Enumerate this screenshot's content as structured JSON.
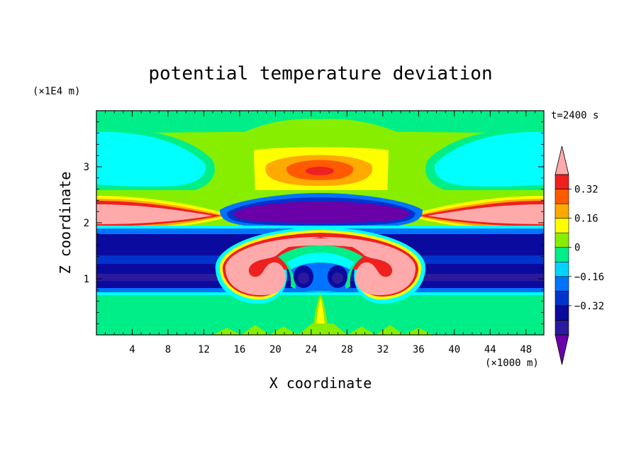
{
  "chart_data": {
    "type": "heatmap",
    "title": "potential temperature deviation",
    "xlabel": "X coordinate",
    "ylabel": "Z coordinate",
    "x_unit": "(×1000 m)",
    "y_unit": "(×1E4 m)",
    "time_label": "t=2400 s",
    "xlim": [
      0,
      50
    ],
    "ylim": [
      0,
      4
    ],
    "x_ticks": [
      "4",
      "8",
      "12",
      "16",
      "20",
      "24",
      "28",
      "32",
      "36",
      "40",
      "44",
      "48"
    ],
    "y_ticks": [
      "1",
      "2",
      "3"
    ],
    "x_tick_values": [
      4,
      8,
      12,
      16,
      20,
      24,
      28,
      32,
      36,
      40,
      44,
      48
    ],
    "y_tick_values": [
      1,
      2,
      3
    ],
    "colorbar": {
      "levels": [
        -0.48,
        -0.4,
        -0.32,
        -0.24,
        -0.16,
        -0.08,
        0,
        0.08,
        0.16,
        0.24,
        0.32,
        0.4
      ],
      "colors": [
        "#6a00a8",
        "#2c1a9e",
        "#0a0a9e",
        "#0033cc",
        "#0073ff",
        "#00d4ff",
        "#00ee88",
        "#88ee00",
        "#ffff00",
        "#ffaa00",
        "#ff5a00",
        "#ee2020",
        "#ffaaaa"
      ],
      "labels": [
        "0.32",
        "0.16",
        "0",
        "−0.16",
        "−0.32"
      ],
      "label_values": [
        0.32,
        0.16,
        0,
        -0.16,
        -0.32
      ]
    },
    "regions": [
      {
        "name": "background",
        "value": 0.04
      },
      {
        "name": "upper-left-cyan-lobe",
        "value": -0.06
      },
      {
        "name": "upper-right-cyan-lobe",
        "value": -0.06
      },
      {
        "name": "top-center-warm-dome",
        "value": 0.3
      },
      {
        "name": "purple-cold-cap",
        "value": -0.45
      },
      {
        "name": "left-pink-warm-wedge",
        "value": 0.45
      },
      {
        "name": "right-pink-warm-wedge",
        "value": 0.45
      },
      {
        "name": "cold-blue-band",
        "value": -0.36
      },
      {
        "name": "left-thermal-rotor",
        "value": 0.45
      },
      {
        "name": "right-thermal-rotor",
        "value": 0.45
      },
      {
        "name": "lower-green-layer",
        "value": 0.0
      }
    ]
  }
}
